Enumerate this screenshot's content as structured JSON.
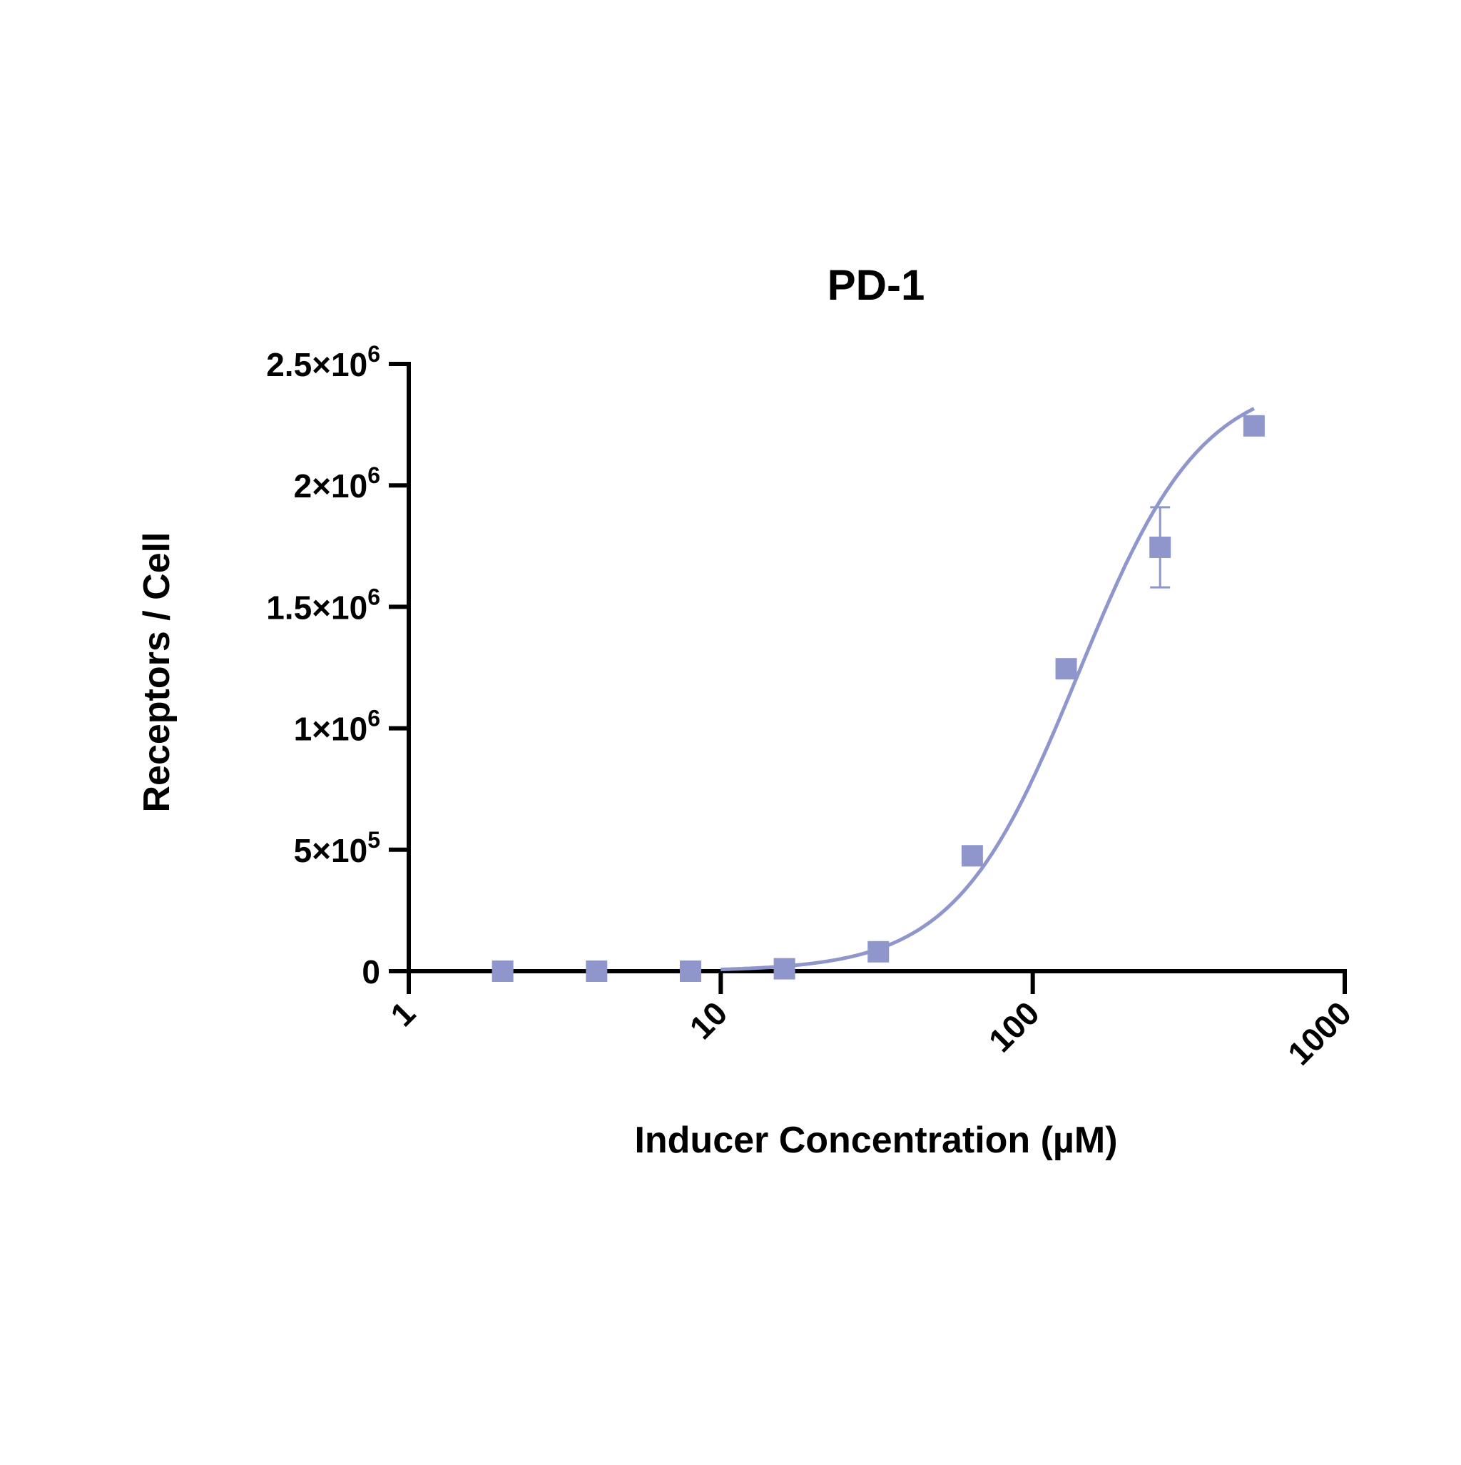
{
  "chart_data": {
    "type": "scatter",
    "title": "PD-1",
    "xlabel": "Inducer Concentration (µM)",
    "ylabel": "Receptors / Cell",
    "x_scale": "log",
    "xlim": [
      1,
      1000
    ],
    "ylim": [
      0,
      2500000
    ],
    "x_ticks": [
      1,
      10,
      100,
      1000
    ],
    "x_tick_labels": [
      "1",
      "10",
      "100",
      "1000"
    ],
    "y_ticks": [
      {
        "value": 0,
        "mant": "0",
        "exp": ""
      },
      {
        "value": 500000,
        "mant": "5×10",
        "exp": "5"
      },
      {
        "value": 1000000,
        "mant": "1×10",
        "exp": "6"
      },
      {
        "value": 1500000,
        "mant": "1.5×10",
        "exp": "6"
      },
      {
        "value": 2000000,
        "mant": "2×10",
        "exp": "6"
      },
      {
        "value": 2500000,
        "mant": "2.5×10",
        "exp": "6"
      }
    ],
    "grid": false,
    "color": "#8f96cc",
    "series": [
      {
        "points": [
          {
            "x": 2,
            "y": 0,
            "err": 0
          },
          {
            "x": 4,
            "y": 0,
            "err": 0
          },
          {
            "x": 8,
            "y": 0,
            "err": 0
          },
          {
            "x": 16,
            "y": 10000,
            "err": 0
          },
          {
            "x": 32,
            "y": 80000,
            "err": 0
          },
          {
            "x": 64,
            "y": 475000,
            "err": 15000
          },
          {
            "x": 128,
            "y": 1245000,
            "err": 10000
          },
          {
            "x": 256,
            "y": 1745000,
            "err": 165000
          },
          {
            "x": 512,
            "y": 2245000,
            "err": 0
          }
        ],
        "fit": {
          "bottom": 0,
          "top": 2450000,
          "ec50": 140,
          "hill": 2.2,
          "x_start": 10,
          "x_end": 512
        }
      }
    ]
  }
}
